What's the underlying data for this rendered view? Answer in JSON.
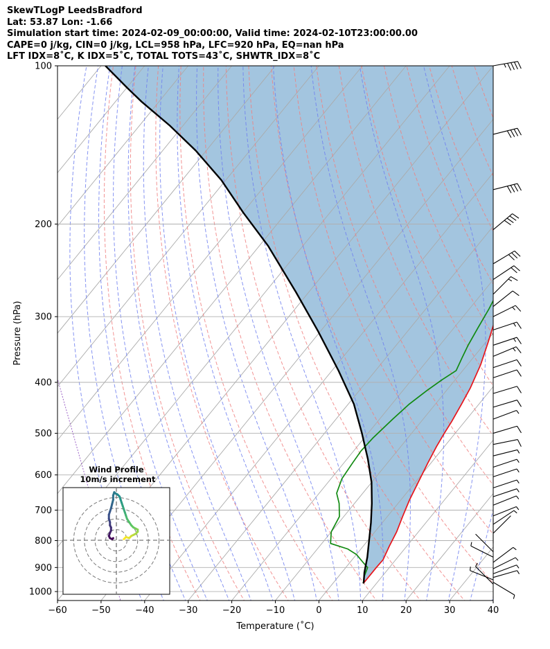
{
  "header": {
    "lines": [
      "SkewTLogP LeedsBradford",
      "Lat: 53.87   Lon: -1.66",
      "Simulation start time: 2024-02-09_00:00:00, Valid time: 2024-02-10T23:00:00.00",
      "CAPE=0 j/kg, CIN=0 j/kg, LCL=958 hPa, LFC=920 hPa, EQ=nan hPa",
      "LFT IDX=8˚C, K IDX=5˚C, TOTAL TOTS=43˚C, SHWTR_IDX=8˚C"
    ]
  },
  "chart_data": {
    "type": "skewt",
    "xlabel": "Temperature (˚C)",
    "ylabel": "Pressure (hPa)",
    "xlim": [
      -60,
      40
    ],
    "ylim": [
      1040,
      100
    ],
    "x_ticks": [
      -60,
      -50,
      -40,
      -30,
      -20,
      -10,
      0,
      10,
      20,
      30,
      40
    ],
    "y_ticks": [
      1000,
      900,
      800,
      700,
      600,
      500,
      400,
      300,
      200,
      100
    ],
    "grid": true,
    "colors": {
      "temperature": "#e8141a",
      "dewpoint": "#118a11",
      "parcel": "#000000",
      "cape_fill": "#a3c5df",
      "isotherm": "#aaaaaa",
      "dry_adiabat": "#f08080",
      "moist_adiabat": "#7080f0",
      "mixing_ratio": "#9050c0"
    },
    "series": [
      {
        "key": "temperature",
        "points": [
          [
            7,
            965
          ],
          [
            7,
            940
          ],
          [
            7,
            900
          ],
          [
            7.1,
            870
          ],
          [
            6,
            820
          ],
          [
            5,
            770
          ],
          [
            3.5,
            720
          ],
          [
            2,
            670
          ],
          [
            0.7,
            620
          ],
          [
            -0.7,
            570
          ],
          [
            -1.8,
            530
          ],
          [
            -2.5,
            500
          ],
          [
            -3,
            475
          ],
          [
            -4,
            440
          ],
          [
            -5,
            410
          ],
          [
            -7,
            370
          ],
          [
            -9.5,
            335
          ],
          [
            -12,
            305
          ],
          [
            -14.3,
            285
          ],
          [
            -15,
            273
          ],
          [
            -15.6,
            262
          ],
          [
            -14,
            248
          ],
          [
            -12.8,
            235
          ],
          [
            -11,
            220
          ],
          [
            -8.5,
            200
          ],
          [
            -7.6,
            190
          ],
          [
            -6.2,
            175
          ],
          [
            -4.5,
            163
          ],
          [
            -3.8,
            155
          ],
          [
            -3,
            147
          ],
          [
            -2,
            140
          ],
          [
            -1,
            132
          ],
          [
            0,
            125
          ],
          [
            1,
            118
          ],
          [
            2,
            112
          ],
          [
            3,
            106
          ],
          [
            4,
            100
          ]
        ]
      },
      {
        "key": "dewpoint",
        "points": [
          [
            7,
            965
          ],
          [
            6,
            940
          ],
          [
            5,
            900
          ],
          [
            3,
            880
          ],
          [
            0,
            850
          ],
          [
            -3,
            830
          ],
          [
            -8,
            810
          ],
          [
            -10,
            770
          ],
          [
            -11,
            720
          ],
          [
            -13.5,
            680
          ],
          [
            -16,
            650
          ],
          [
            -17.5,
            610
          ],
          [
            -18,
            570
          ],
          [
            -18.3,
            540
          ],
          [
            -18,
            510
          ],
          [
            -17,
            470
          ],
          [
            -16,
            440
          ],
          [
            -14.5,
            415
          ],
          [
            -13,
            395
          ],
          [
            -11.5,
            380
          ],
          [
            -12.5,
            360
          ],
          [
            -13.5,
            340
          ],
          [
            -14.5,
            315
          ],
          [
            -15.5,
            290
          ],
          [
            -16.5,
            272
          ],
          [
            -17,
            262
          ],
          [
            -18.5,
            250
          ],
          [
            -21,
            235
          ],
          [
            -21.3,
            215
          ],
          [
            -21,
            200
          ],
          [
            -22,
            190
          ],
          [
            -22.5,
            180
          ],
          [
            -21.5,
            170
          ],
          [
            -19.5,
            160
          ],
          [
            -17.5,
            150
          ],
          [
            -15,
            140
          ],
          [
            -12.7,
            131
          ],
          [
            -10,
            123
          ],
          [
            -7.5,
            115
          ],
          [
            -5,
            107
          ],
          [
            -2.7,
            100
          ]
        ]
      },
      {
        "key": "parcel",
        "points": [
          [
            7,
            965
          ],
          [
            6.8,
            958
          ],
          [
            5.2,
            920
          ],
          [
            3,
            860
          ],
          [
            0.3,
            800
          ],
          [
            -2.6,
            740
          ],
          [
            -6,
            680
          ],
          [
            -10,
            620
          ],
          [
            -15.2,
            560
          ],
          [
            -21.4,
            500
          ],
          [
            -28.7,
            440
          ],
          [
            -38.5,
            380
          ],
          [
            -50.5,
            320
          ],
          [
            -62.8,
            270
          ],
          [
            -78,
            220
          ],
          [
            -90,
            190
          ],
          [
            -101,
            165
          ],
          [
            -112.4,
            145
          ],
          [
            -123,
            130
          ],
          [
            -134,
            117
          ],
          [
            -140,
            110
          ],
          [
            -149,
            100
          ]
        ]
      }
    ],
    "wind_barbs": {
      "pressures": [
        100,
        135,
        172,
        205,
        238,
        255,
        272,
        287,
        300,
        318,
        340,
        357,
        375,
        392,
        420,
        446,
        470,
        500,
        525,
        552,
        580,
        605,
        635,
        660,
        685,
        718,
        745,
        775,
        810,
        840,
        860,
        880,
        905,
        925,
        940,
        950,
        960,
        968
      ],
      "u": [
        -45,
        -40,
        -40,
        -30,
        -25,
        -18,
        -10,
        -10,
        -12,
        -15,
        -15,
        -12,
        -12,
        -12,
        -10,
        -10,
        -8,
        -10,
        -10,
        -8,
        -6,
        -6,
        -6,
        -6,
        -5,
        -5,
        -3,
        -2,
        0,
        2,
        4,
        -4,
        -6,
        -8,
        -7,
        5,
        -5,
        3
      ],
      "v": [
        -8,
        -10,
        -10,
        -25,
        -15,
        -12,
        -10,
        -8,
        -6,
        -5,
        -5,
        -5,
        -4,
        -4,
        -3,
        -3,
        -3,
        -3,
        -2,
        -2,
        -2,
        -2,
        -2,
        -2,
        -2,
        -2,
        -2,
        -2,
        -2,
        -2,
        -2,
        -3,
        -3,
        -3,
        -2,
        -2,
        3,
        -3
      ]
    },
    "hodograph": {
      "title": "Wind Profile",
      "subtitle": "10m/s increment",
      "rings": [
        10,
        20,
        30,
        40
      ],
      "range": 50,
      "colormap": [
        "#440154",
        "#3b528b",
        "#21918c",
        "#5ec962",
        "#fde725"
      ],
      "u": [
        7,
        9,
        12,
        14,
        16,
        18,
        20,
        20,
        18,
        16,
        14,
        12,
        10,
        9,
        8,
        7,
        6,
        5,
        4,
        3,
        1,
        -1,
        -2,
        -3,
        -3,
        -4,
        -5,
        -6,
        -7,
        -7,
        -6,
        -6,
        -5,
        -5,
        -6,
        -7,
        -6,
        -4,
        -3
      ],
      "v": [
        1,
        3,
        2,
        4,
        5,
        6,
        8,
        10,
        11,
        12,
        14,
        17,
        20,
        23,
        26,
        29,
        32,
        35,
        38,
        41,
        43,
        44,
        45,
        42,
        38,
        34,
        30,
        27,
        24,
        20,
        17,
        14,
        12,
        9,
        7,
        4,
        2,
        1,
        2
      ]
    }
  }
}
